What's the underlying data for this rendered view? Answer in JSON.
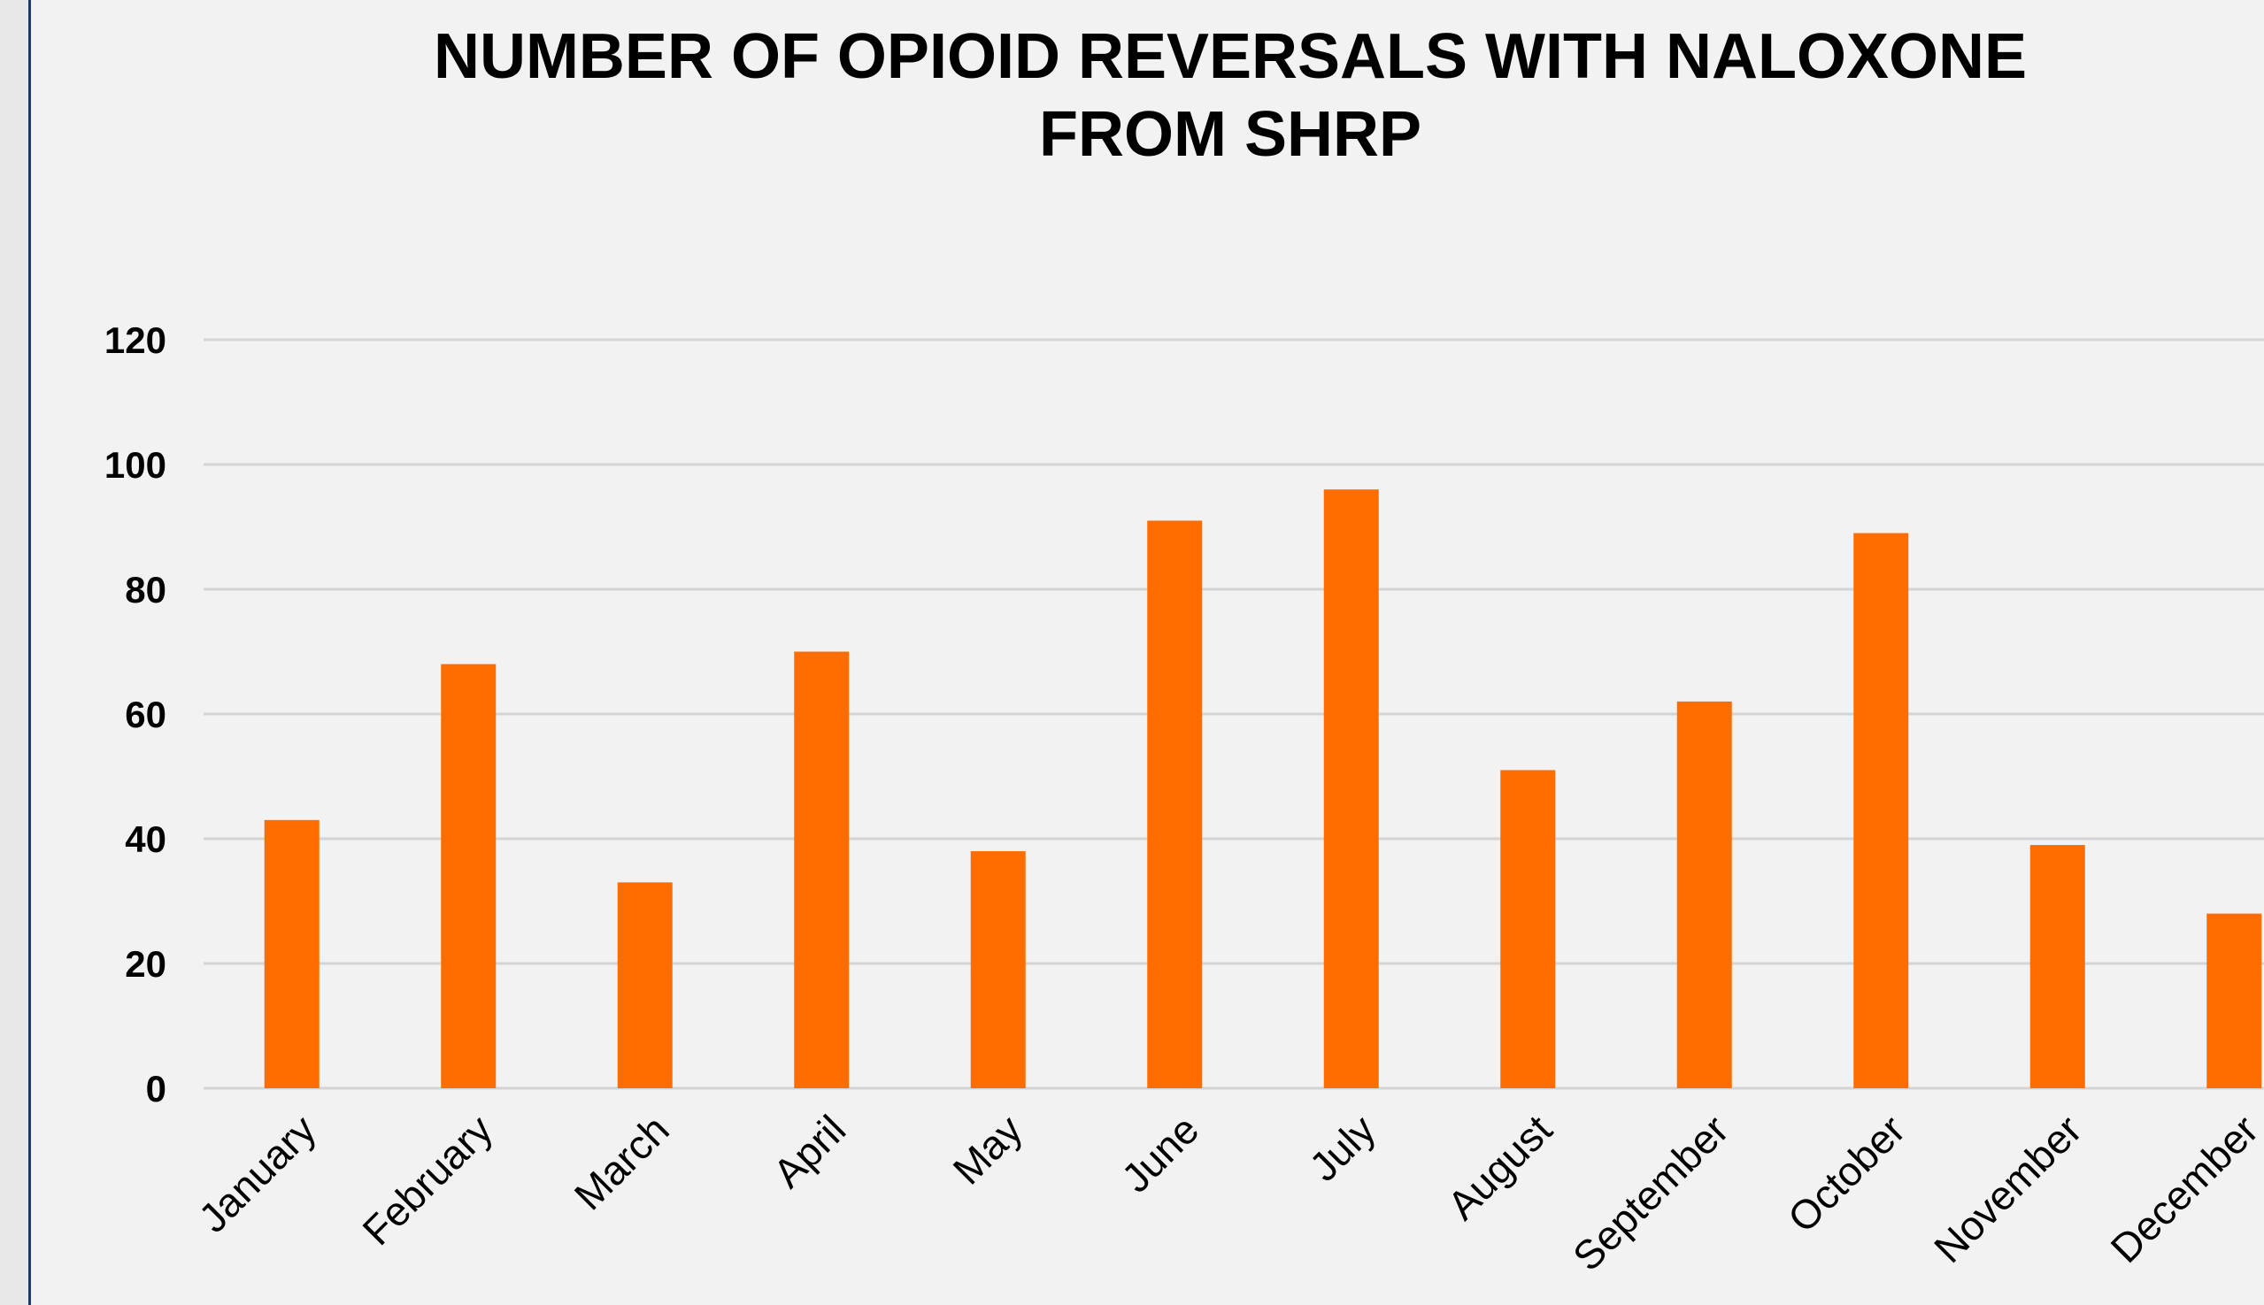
{
  "chart_data": {
    "type": "bar",
    "title_lines": [
      "NUMBER OF OPIOID REVERSALS WITH NALOXONE",
      "FROM SHRP"
    ],
    "categories": [
      "January",
      "February",
      "March",
      "April",
      "May",
      "June",
      "July",
      "August",
      "September",
      "October",
      "November",
      "December"
    ],
    "values": [
      43,
      68,
      33,
      70,
      38,
      91,
      96,
      51,
      62,
      89,
      39,
      28
    ],
    "ylim": [
      0,
      120
    ],
    "yticks": [
      "0",
      "20",
      "40",
      "60",
      "80",
      "100",
      "120"
    ],
    "grid": true,
    "legend": "none",
    "bar_color": "#ff6d00",
    "grid_color": "#d4d4d4"
  }
}
